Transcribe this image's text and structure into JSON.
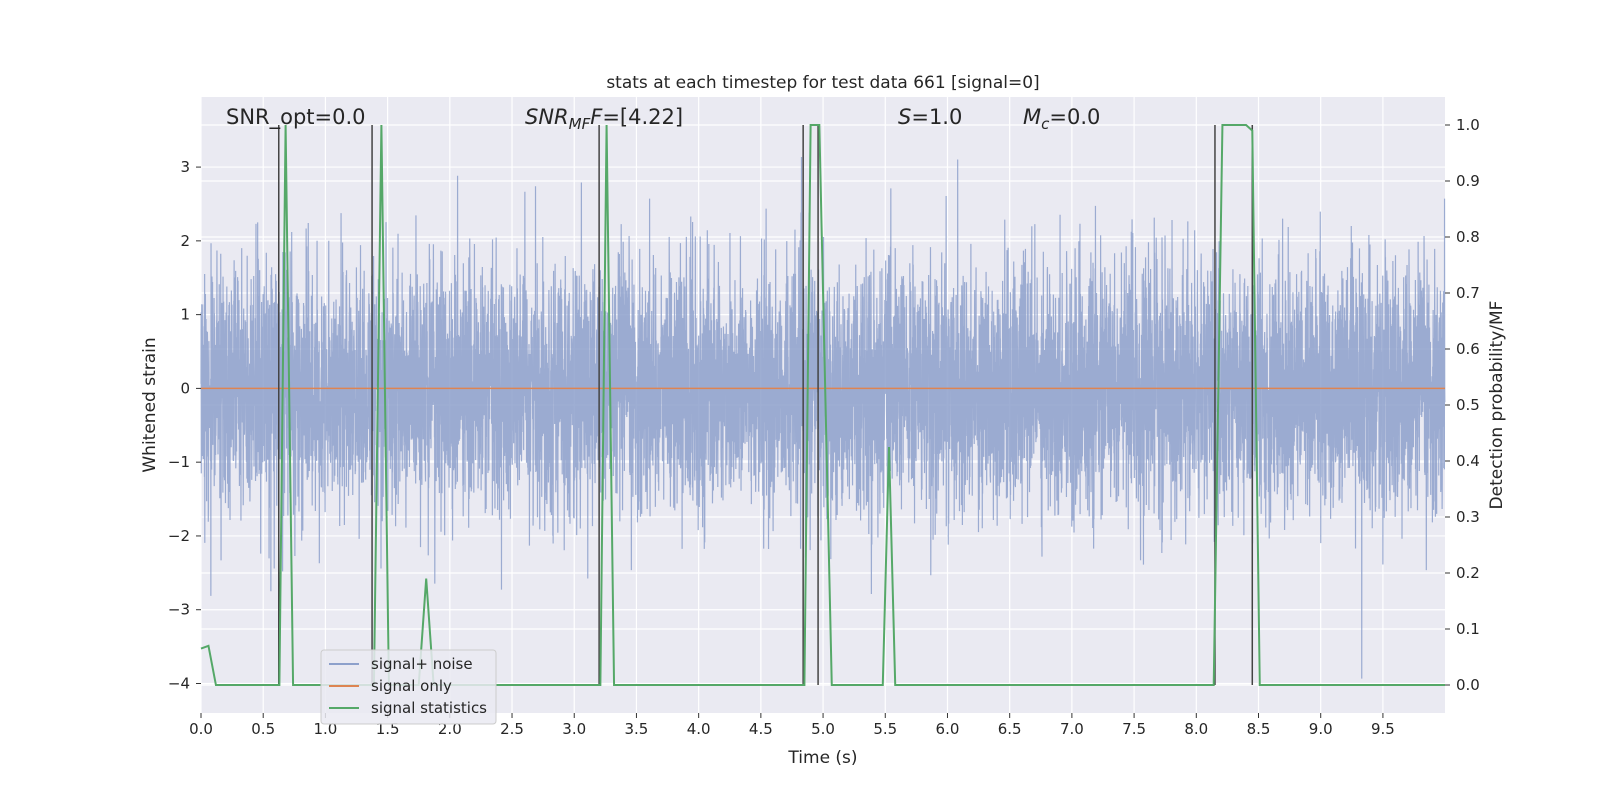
{
  "chart_data": {
    "type": "line",
    "title": "stats at each timestep for test data 661 [signal=0]",
    "xlabel": "Time (s)",
    "ylabel": "Whitened strain",
    "ylabel_right": "Detection probability/MF",
    "xlim": [
      0.0,
      9.999
    ],
    "ylim": [
      -4.4,
      3.95
    ],
    "ylim_right": [
      -0.05,
      1.05
    ],
    "xticks": [
      "0.0",
      "0.5",
      "1.0",
      "1.5",
      "2.0",
      "2.5",
      "3.0",
      "3.5",
      "4.0",
      "4.5",
      "5.0",
      "5.5",
      "6.0",
      "6.5",
      "7.0",
      "7.5",
      "8.0",
      "8.5",
      "9.0",
      "9.5"
    ],
    "yticks_left": [
      "−4",
      "−3",
      "−2",
      "−1",
      "0",
      "1",
      "2",
      "3"
    ],
    "yticks_right": [
      "0.0",
      "0.1",
      "0.2",
      "0.3",
      "0.4",
      "0.5",
      "0.6",
      "0.7",
      "0.8",
      "0.9",
      "1.0"
    ],
    "grid": true,
    "legend_position": "lower-left",
    "annotations": {
      "snr_opt": "SNR_opt=0.0",
      "snr_mf_prefix": "SNR",
      "snr_mf_sub": "MF",
      "snr_mf_suffix": "=[4.22]",
      "s_prefix": "S",
      "s_suffix": "=1.0",
      "mc_prefix": "M",
      "mc_sub": "c",
      "mc_suffix": "=0.0"
    },
    "series": [
      {
        "name": "signal+ noise",
        "color": "#8da0cb",
        "axis": "left",
        "kind": "noise_band",
        "std": 0.82,
        "peak_range": [
          -4.0,
          3.55
        ],
        "sample_rate": 819
      },
      {
        "name": "signal only",
        "color": "#dd8452",
        "axis": "left",
        "kind": "constant",
        "value": 0.0
      },
      {
        "name": "signal statistics",
        "color": "#55a868",
        "axis": "right",
        "x": [
          0.0,
          0.06,
          0.12,
          0.18,
          0.25,
          0.3,
          0.35,
          0.4,
          0.45,
          0.5,
          0.55,
          0.63,
          0.68,
          0.74,
          0.8,
          0.9,
          1.0,
          1.1,
          1.2,
          1.3,
          1.39,
          1.45,
          1.51,
          1.6,
          1.7,
          1.75,
          1.81,
          1.87,
          1.95,
          2.0,
          2.5,
          3.0,
          3.21,
          3.26,
          3.32,
          3.5,
          4.0,
          4.5,
          4.85,
          4.9,
          4.97,
          5.07,
          5.2,
          5.4,
          5.48,
          5.53,
          5.58,
          5.64,
          5.7,
          6.0,
          6.5,
          7.0,
          7.5,
          8.0,
          8.14,
          8.21,
          8.4,
          8.45,
          8.51,
          8.7,
          9.0,
          9.5,
          9.999
        ],
        "values": [
          0.065,
          0.07,
          0.0,
          0.0,
          0.0,
          0.0,
          0.0,
          0.0,
          0.0,
          0.0,
          0.0,
          0.0,
          1.0,
          0.0,
          0.0,
          0.0,
          0.0,
          0.0,
          0.0,
          0.0,
          0.0,
          1.0,
          0.0,
          0.0,
          0.0,
          0.0,
          0.19,
          0.0,
          0.0,
          0.0,
          0.0,
          0.0,
          0.0,
          1.0,
          0.0,
          0.0,
          0.0,
          0.0,
          0.0,
          1.0,
          1.0,
          0.0,
          0.0,
          0.0,
          0.0,
          0.425,
          0.0,
          0.0,
          0.0,
          0.0,
          0.0,
          0.0,
          0.0,
          0.0,
          0.0,
          1.0,
          1.0,
          0.99,
          0.0,
          0.0,
          0.0,
          0.0,
          0.0
        ]
      },
      {
        "name": "",
        "color": "#444444",
        "axis": "right",
        "kind": "vlines",
        "x": [
          0.625,
          1.375,
          3.2,
          4.84,
          4.96,
          8.15,
          8.45
        ],
        "ymin": 0.0,
        "ymax": 1.0
      }
    ]
  }
}
